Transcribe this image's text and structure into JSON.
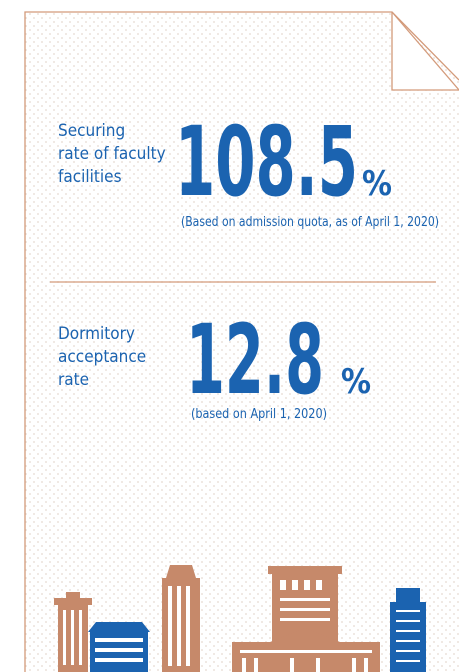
{
  "stats": [
    {
      "label": [
        "Securing",
        "rate of faculty",
        "facilities"
      ],
      "value": "108.5",
      "unit": "%",
      "note": "(Based on admission quota, as of April 1, 2020)"
    },
    {
      "label": [
        "Dormitory",
        "acceptance",
        "rate"
      ],
      "value": "12.8",
      "unit": "%",
      "note": "(based on April 1, 2020)"
    }
  ]
}
